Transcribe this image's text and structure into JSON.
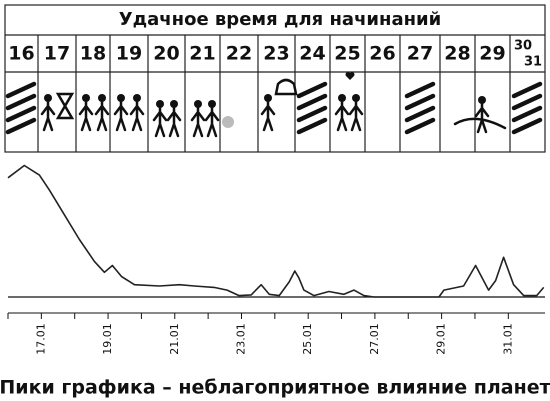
{
  "title": "Удачное время для начинаний",
  "days": [
    "16",
    "17",
    "18",
    "19",
    "20",
    "21",
    "22",
    "23",
    "24",
    "25",
    "26",
    "27",
    "28",
    "29",
    "30",
    "31"
  ],
  "caption": "Пики графика – неблагоприятное влияние планет",
  "chart_data": {
    "type": "line",
    "x": [
      16.0,
      16.49,
      16.94,
      17.24,
      17.69,
      18.14,
      18.59,
      18.89,
      19.13,
      19.4,
      19.79,
      20.54,
      21.14,
      21.59,
      22.18,
      22.57,
      22.93,
      23.29,
      23.59,
      23.83,
      24.13,
      24.43,
      24.6,
      24.72,
      24.87,
      25.17,
      25.62,
      26.07,
      26.37,
      26.67,
      26.97,
      28.92,
      29.07,
      29.66,
      30.02,
      30.41,
      30.62,
      30.86,
      31.16,
      31.46,
      31.85,
      32.06
    ],
    "series": [
      {
        "color": "#222222",
        "values": [
          87,
          96,
          89,
          78,
          60,
          42,
          26,
          18,
          23,
          15,
          9,
          8,
          9,
          8,
          7,
          5,
          1,
          1.5,
          9,
          2,
          1,
          11,
          19,
          14,
          5,
          1,
          4,
          2,
          5,
          1,
          0,
          0,
          5,
          8,
          23,
          5,
          12,
          29,
          9,
          1,
          1,
          7
        ]
      }
    ],
    "xlim": [
      16,
      32.1
    ],
    "ylim": [
      0,
      100
    ],
    "xticks": [
      {
        "value": 17,
        "label": "17.01"
      },
      {
        "value": 19,
        "label": "19.01"
      },
      {
        "value": 21,
        "label": "21.01"
      },
      {
        "value": 23,
        "label": "23.01"
      },
      {
        "value": 25,
        "label": "25.01"
      },
      {
        "value": 27,
        "label": "27.01"
      },
      {
        "value": 29,
        "label": "29.01"
      },
      {
        "value": 31,
        "label": "31.01"
      }
    ],
    "xminor_ticks": [
      16,
      18,
      20,
      22,
      24,
      26,
      28,
      30
    ]
  }
}
